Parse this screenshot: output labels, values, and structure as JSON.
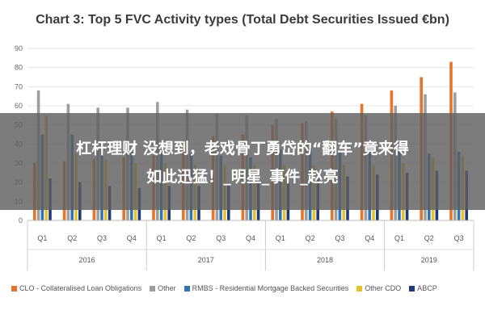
{
  "chart_data": {
    "type": "bar",
    "title": "Chart 3: Top 5 FVC Activity types (Total Debt Securities Issued €bn)",
    "ylim": [
      0,
      90
    ],
    "yticks": [
      0,
      10,
      20,
      30,
      40,
      50,
      60,
      70,
      80,
      90
    ],
    "grid": true,
    "legend_position": "bottom",
    "categories": [
      "Q1",
      "Q2",
      "Q3",
      "Q4",
      "Q1",
      "Q2",
      "Q3",
      "Q4",
      "Q1",
      "Q2",
      "Q3",
      "Q4",
      "Q1",
      "Q2",
      "Q3"
    ],
    "groups": [
      {
        "label": "2016",
        "count": 4
      },
      {
        "label": "2017",
        "count": 4
      },
      {
        "label": "2018",
        "count": 4
      },
      {
        "label": "2019",
        "count": 3
      }
    ],
    "series": [
      {
        "name": "CLO - Collateralised Loan Obligations",
        "color": "#e8742a",
        "values": [
          30,
          31,
          32,
          33,
          34,
          40,
          44,
          45,
          50,
          51,
          57,
          61,
          68,
          75,
          83
        ]
      },
      {
        "name": "Other",
        "color": "#9e9e9e",
        "values": [
          68,
          61,
          59,
          59,
          62,
          58,
          56,
          55,
          53,
          52,
          53,
          55,
          60,
          66,
          67
        ]
      },
      {
        "name": "RMBS - Residential Mortgage Backed Securities",
        "color": "#2e75b6",
        "values": [
          45,
          45,
          40,
          36,
          36,
          35,
          34,
          33,
          37,
          38,
          36,
          36,
          36,
          35,
          36
        ]
      },
      {
        "name": "Other CDO",
        "color": "#e8c22c",
        "values": [
          55,
          35,
          32,
          30,
          30,
          29,
          29,
          29,
          29,
          29,
          29,
          29,
          30,
          33,
          34
        ]
      },
      {
        "name": "ABCP",
        "color": "#1f3b78",
        "values": [
          22,
          20,
          18,
          17,
          18,
          18,
          19,
          20,
          20,
          22,
          23,
          24,
          25,
          26,
          26
        ]
      }
    ]
  },
  "banner": {
    "line1": "杠杆理财 没想到，老戏骨丁勇岱的“翻车”竟来得",
    "line2": "如此迅猛！_明星_事件_赵亮"
  }
}
